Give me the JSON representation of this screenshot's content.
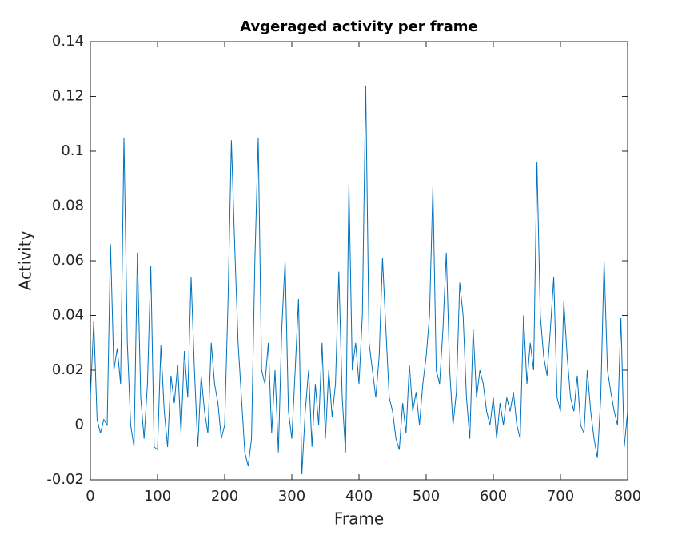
{
  "chart_data": {
    "type": "line",
    "title": "Avgeraged activity per frame",
    "xlabel": "Frame",
    "ylabel": "Activity",
    "x": [
      0,
      5,
      10,
      15,
      20,
      25,
      30,
      35,
      40,
      45,
      50,
      55,
      60,
      65,
      70,
      75,
      80,
      85,
      90,
      95,
      100,
      105,
      110,
      115,
      120,
      125,
      130,
      135,
      140,
      145,
      150,
      155,
      160,
      165,
      170,
      175,
      180,
      185,
      190,
      195,
      200,
      205,
      210,
      215,
      220,
      225,
      230,
      235,
      240,
      245,
      250,
      255,
      260,
      265,
      270,
      275,
      280,
      285,
      290,
      295,
      300,
      305,
      310,
      315,
      320,
      325,
      330,
      335,
      340,
      345,
      350,
      355,
      360,
      365,
      370,
      375,
      380,
      385,
      390,
      395,
      400,
      405,
      410,
      415,
      420,
      425,
      430,
      435,
      440,
      445,
      450,
      455,
      460,
      465,
      470,
      475,
      480,
      485,
      490,
      495,
      500,
      505,
      510,
      515,
      520,
      525,
      530,
      535,
      540,
      545,
      550,
      555,
      560,
      565,
      570,
      575,
      580,
      585,
      590,
      595,
      600,
      605,
      610,
      615,
      620,
      625,
      630,
      635,
      640,
      645,
      650,
      655,
      660,
      665,
      670,
      675,
      680,
      685,
      690,
      695,
      700,
      705,
      710,
      715,
      720,
      725,
      730,
      735,
      740,
      745,
      750,
      755,
      760,
      765,
      770,
      775,
      780,
      785,
      790,
      795,
      800
    ],
    "series": [
      {
        "name": "Activity",
        "color": "#0072bd",
        "values": [
          0.01,
          0.038,
          0.002,
          -0.003,
          0.002,
          0.0,
          0.066,
          0.02,
          0.028,
          0.015,
          0.105,
          0.03,
          0.0,
          -0.008,
          0.063,
          0.01,
          -0.005,
          0.015,
          0.058,
          -0.008,
          -0.009,
          0.029,
          0.005,
          -0.008,
          0.018,
          0.008,
          0.022,
          -0.003,
          0.027,
          0.01,
          0.054,
          0.02,
          -0.008,
          0.018,
          0.005,
          -0.003,
          0.03,
          0.015,
          0.008,
          -0.005,
          0.0,
          0.045,
          0.104,
          0.065,
          0.03,
          0.01,
          -0.01,
          -0.015,
          -0.005,
          0.06,
          0.105,
          0.02,
          0.015,
          0.03,
          -0.003,
          0.02,
          -0.01,
          0.035,
          0.06,
          0.005,
          -0.005,
          0.02,
          0.046,
          -0.018,
          0.005,
          0.02,
          -0.008,
          0.015,
          0.0,
          0.03,
          -0.005,
          0.02,
          0.003,
          0.015,
          0.056,
          0.01,
          -0.01,
          0.088,
          0.02,
          0.03,
          0.015,
          0.04,
          0.124,
          0.03,
          0.02,
          0.01,
          0.025,
          0.061,
          0.035,
          0.01,
          0.005,
          -0.005,
          -0.009,
          0.008,
          -0.003,
          0.022,
          0.005,
          0.012,
          0.0,
          0.015,
          0.025,
          0.04,
          0.087,
          0.02,
          0.015,
          0.035,
          0.063,
          0.02,
          0.0,
          0.012,
          0.052,
          0.04,
          0.01,
          -0.005,
          0.035,
          0.01,
          0.02,
          0.015,
          0.005,
          0.0,
          0.01,
          -0.005,
          0.008,
          0.0,
          0.01,
          0.005,
          0.012,
          0.0,
          -0.005,
          0.04,
          0.015,
          0.03,
          0.02,
          0.096,
          0.04,
          0.025,
          0.018,
          0.035,
          0.054,
          0.01,
          0.005,
          0.045,
          0.025,
          0.01,
          0.005,
          0.018,
          0.0,
          -0.003,
          0.02,
          0.005,
          -0.005,
          -0.012,
          0.01,
          0.06,
          0.02,
          0.012,
          0.005,
          0.0,
          0.039,
          -0.008,
          0.005
        ]
      }
    ],
    "hlines": [
      0
    ],
    "xlim": [
      0,
      800
    ],
    "xticks": [
      0,
      100,
      200,
      300,
      400,
      500,
      600,
      700,
      800
    ],
    "ylim": [
      -0.02,
      0.14
    ],
    "yticks": [
      -0.02,
      0,
      0.02,
      0.04,
      0.06,
      0.08,
      0.1,
      0.12,
      0.14
    ],
    "grid": false
  }
}
